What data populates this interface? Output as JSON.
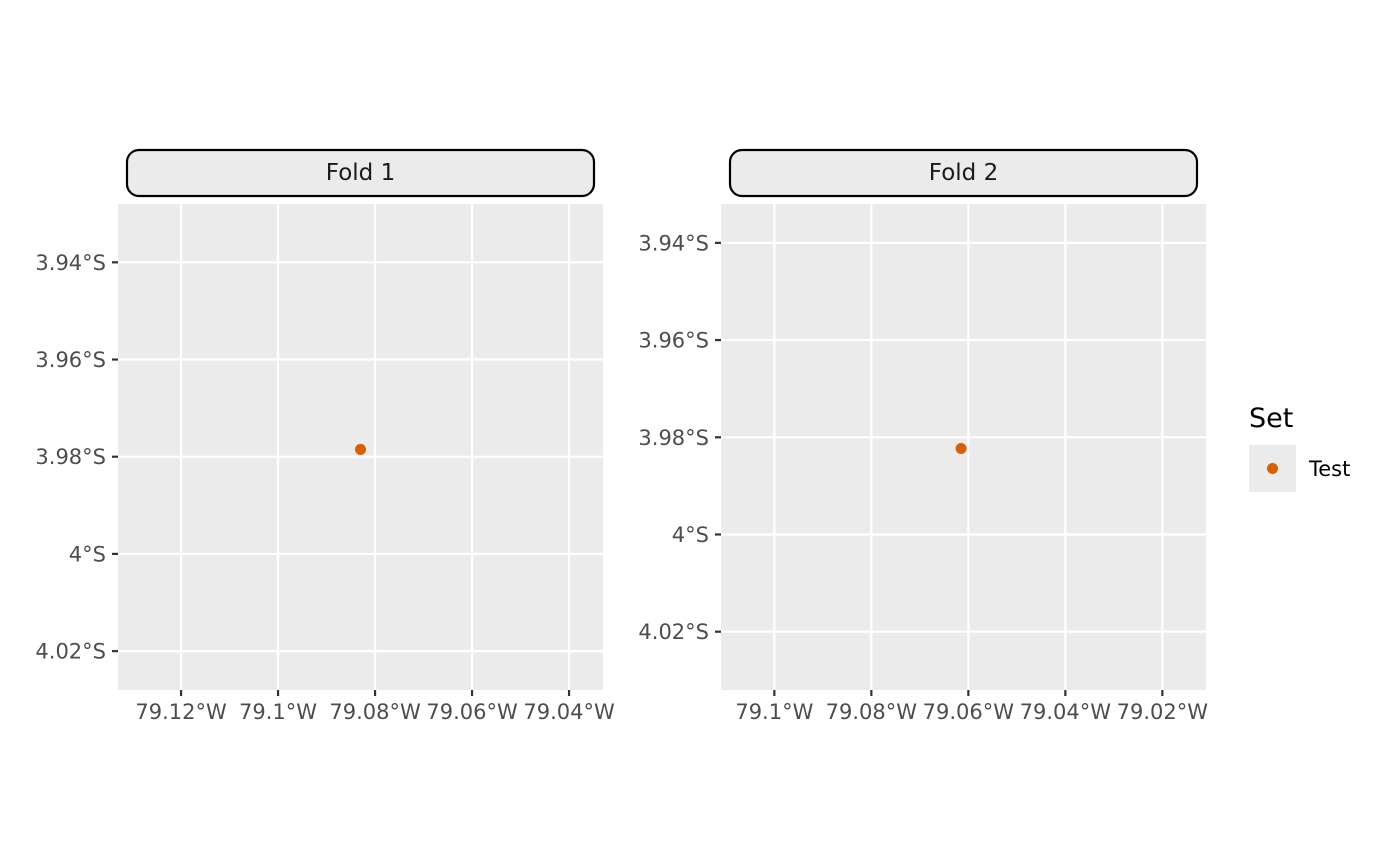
{
  "chart_data": {
    "type": "scatter",
    "colors": {
      "panel_background": "#ebebeb",
      "grid": "#ffffff",
      "strip_fill": "#ebebeb",
      "strip_border": "#000000",
      "tick_text": "#4d4d4d",
      "tick_mark": "#333333",
      "point": "#d95f02"
    },
    "legend": {
      "title": "Set",
      "position": "right",
      "items": [
        {
          "label": "Test",
          "color": "#d95f02"
        }
      ]
    },
    "facets": [
      {
        "title": "Fold 1",
        "xlim": [
          -79.133,
          -79.033
        ],
        "ylim": [
          -4.028,
          -3.928
        ],
        "x_ticks": [
          {
            "value": -79.12,
            "label": "79.12°W"
          },
          {
            "value": -79.1,
            "label": "79.1°W"
          },
          {
            "value": -79.08,
            "label": "79.08°W"
          },
          {
            "value": -79.06,
            "label": "79.06°W"
          },
          {
            "value": -79.04,
            "label": "79.04°W"
          }
        ],
        "y_ticks": [
          {
            "value": -3.94,
            "label": "3.94°S"
          },
          {
            "value": -3.96,
            "label": "3.96°S"
          },
          {
            "value": -3.98,
            "label": "3.98°S"
          },
          {
            "value": -4.0,
            "label": "4°S"
          },
          {
            "value": -4.02,
            "label": "4.02°S"
          }
        ],
        "points": [
          {
            "x": -79.083,
            "y": -3.9785,
            "set": "Test"
          }
        ]
      },
      {
        "title": "Fold 2",
        "xlim": [
          -79.111,
          -79.011
        ],
        "ylim": [
          -4.032,
          -3.932
        ],
        "x_ticks": [
          {
            "value": -79.1,
            "label": "79.1°W"
          },
          {
            "value": -79.08,
            "label": "79.08°W"
          },
          {
            "value": -79.06,
            "label": "79.06°W"
          },
          {
            "value": -79.04,
            "label": "79.04°W"
          },
          {
            "value": -79.02,
            "label": "79.02°W"
          }
        ],
        "y_ticks": [
          {
            "value": -3.94,
            "label": "3.94°S"
          },
          {
            "value": -3.96,
            "label": "3.96°S"
          },
          {
            "value": -3.98,
            "label": "3.98°S"
          },
          {
            "value": -4.0,
            "label": "4°S"
          },
          {
            "value": -4.02,
            "label": "4.02°S"
          }
        ],
        "points": [
          {
            "x": -79.0615,
            "y": -3.9823,
            "set": "Test"
          }
        ]
      }
    ]
  }
}
